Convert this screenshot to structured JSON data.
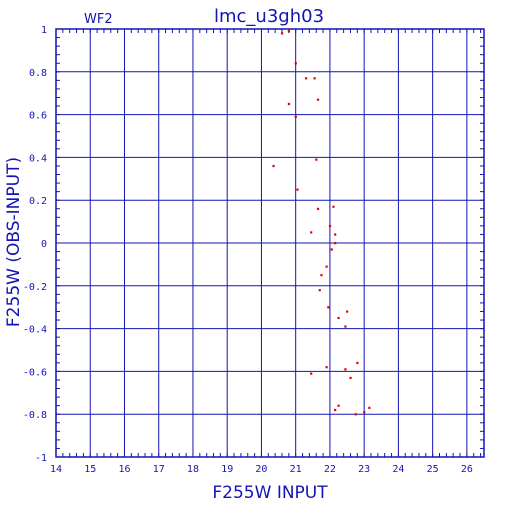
{
  "chart_data": {
    "type": "scatter",
    "title": "lmc_u3gh03",
    "subtitle": "WF2",
    "xlabel": "F255W  INPUT",
    "ylabel": "F255W  (OBS-INPUT)",
    "xlim": [
      14,
      26.5
    ],
    "ylim": [
      -1,
      1
    ],
    "x_ticks": [
      "14",
      "15",
      "16",
      "17",
      "18",
      "19",
      "20",
      "21",
      "22",
      "23",
      "24",
      "25",
      "26"
    ],
    "y_ticks": [
      "1",
      "0.8",
      "0.6",
      "0.4",
      "0.2",
      "0",
      "-0.2",
      "-0.4",
      "-0.6",
      "-0.8",
      "-1"
    ],
    "grid": true,
    "colors": {
      "frame": "#1414b4",
      "points": "#e00000",
      "text": "#1414b4"
    },
    "series": [
      {
        "x": [
          20.6,
          20.8,
          21.0,
          21.3,
          21.55,
          20.8,
          21.65,
          21.0,
          21.6,
          20.35,
          21.05,
          22.1,
          21.65,
          22.0,
          22.15,
          21.45,
          22.15,
          22.05,
          21.9,
          21.75,
          21.7,
          21.95,
          22.5,
          22.25,
          22.45,
          22.8,
          21.9,
          22.45,
          21.45,
          22.6,
          22.25,
          22.15,
          23.15,
          23.0,
          22.75
        ],
        "y": [
          0.98,
          0.99,
          0.84,
          0.77,
          0.77,
          0.65,
          0.67,
          0.59,
          0.39,
          0.36,
          0.25,
          0.17,
          0.16,
          0.08,
          0.04,
          0.05,
          0.0,
          -0.03,
          -0.11,
          -0.15,
          -0.22,
          -0.3,
          -0.32,
          -0.35,
          -0.39,
          -0.56,
          -0.58,
          -0.59,
          -0.61,
          -0.63,
          -0.76,
          -0.78,
          -0.77,
          -0.79,
          -0.8
        ]
      }
    ]
  }
}
